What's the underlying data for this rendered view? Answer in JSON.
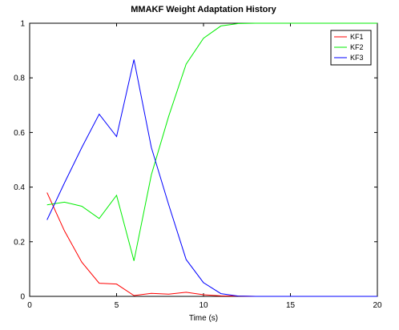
{
  "chart_data": {
    "type": "line",
    "title": "MMAKF Weight Adaptation History",
    "xlabel": "Time (s)",
    "ylabel": "",
    "xlim": [
      0,
      20
    ],
    "ylim": [
      0,
      1
    ],
    "x_ticks": [
      "0",
      "5",
      "10",
      "15",
      "20"
    ],
    "y_ticks": [
      "0",
      "0.2",
      "0.4",
      "0.6",
      "0.8",
      "1"
    ],
    "grid": false,
    "legend_position": "top-right",
    "series": [
      {
        "name": "KF1",
        "color": "#ff0000",
        "x": [
          1,
          2,
          3,
          4,
          5,
          6,
          7,
          8,
          9,
          10,
          11,
          12,
          13,
          14,
          15,
          16,
          17,
          18,
          19,
          20
        ],
        "y": [
          0.38,
          0.24,
          0.125,
          0.048,
          0.045,
          0.003,
          0.011,
          0.008,
          0.015,
          0.006,
          0.002,
          0.001,
          0,
          0,
          0,
          0,
          0,
          0,
          0,
          0
        ]
      },
      {
        "name": "KF2",
        "color": "#00ee00",
        "x": [
          1,
          2,
          3,
          4,
          5,
          6,
          7,
          8,
          9,
          10,
          11,
          12,
          13,
          14,
          15,
          16,
          17,
          18,
          19,
          20
        ],
        "y": [
          0.335,
          0.345,
          0.33,
          0.285,
          0.37,
          0.13,
          0.445,
          0.66,
          0.85,
          0.945,
          0.99,
          0.999,
          1,
          1,
          1,
          1,
          1,
          1,
          1,
          1
        ]
      },
      {
        "name": "KF3",
        "color": "#0000ff",
        "x": [
          1,
          2,
          3,
          4,
          5,
          6,
          7,
          8,
          9,
          10,
          11,
          12,
          13,
          14,
          15,
          16,
          17,
          18,
          19,
          20
        ],
        "y": [
          0.28,
          0.415,
          0.545,
          0.667,
          0.585,
          0.867,
          0.545,
          0.335,
          0.135,
          0.05,
          0.01,
          0.001,
          0,
          0,
          0,
          0,
          0,
          0,
          0,
          0
        ]
      }
    ]
  }
}
